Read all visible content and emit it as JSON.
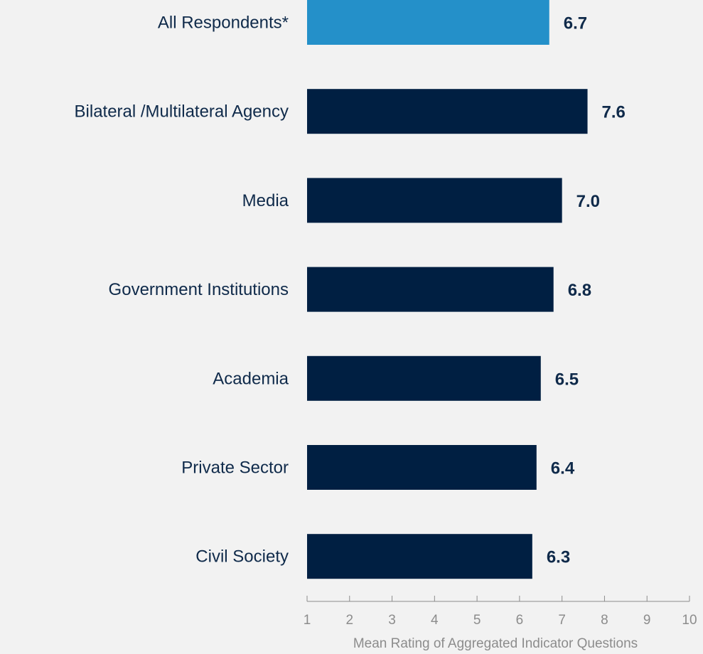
{
  "chart_data": {
    "type": "bar",
    "orientation": "horizontal",
    "categories": [
      "All Respondents*",
      "Bilateral /Multilateral Agency",
      "Media",
      "Government Institutions",
      "Academia",
      "Private Sector",
      "Civil Society"
    ],
    "values": [
      6.7,
      7.6,
      7.0,
      6.8,
      6.5,
      6.4,
      6.3
    ],
    "value_labels": [
      "6.7",
      "7.6",
      "7.0",
      "6.8",
      "6.5",
      "6.4",
      "6.3"
    ],
    "bar_colors": [
      "#2490c9",
      "#001f42",
      "#001f42",
      "#001f42",
      "#001f42",
      "#001f42",
      "#001f42"
    ],
    "xlabel": "Mean Rating of Aggregated Indicator Questions",
    "ylabel": "",
    "xlim": [
      1,
      10
    ],
    "ticks": [
      "1",
      "2",
      "3",
      "4",
      "5",
      "6",
      "7",
      "8",
      "9",
      "10"
    ],
    "grid": false,
    "legend": "none"
  }
}
